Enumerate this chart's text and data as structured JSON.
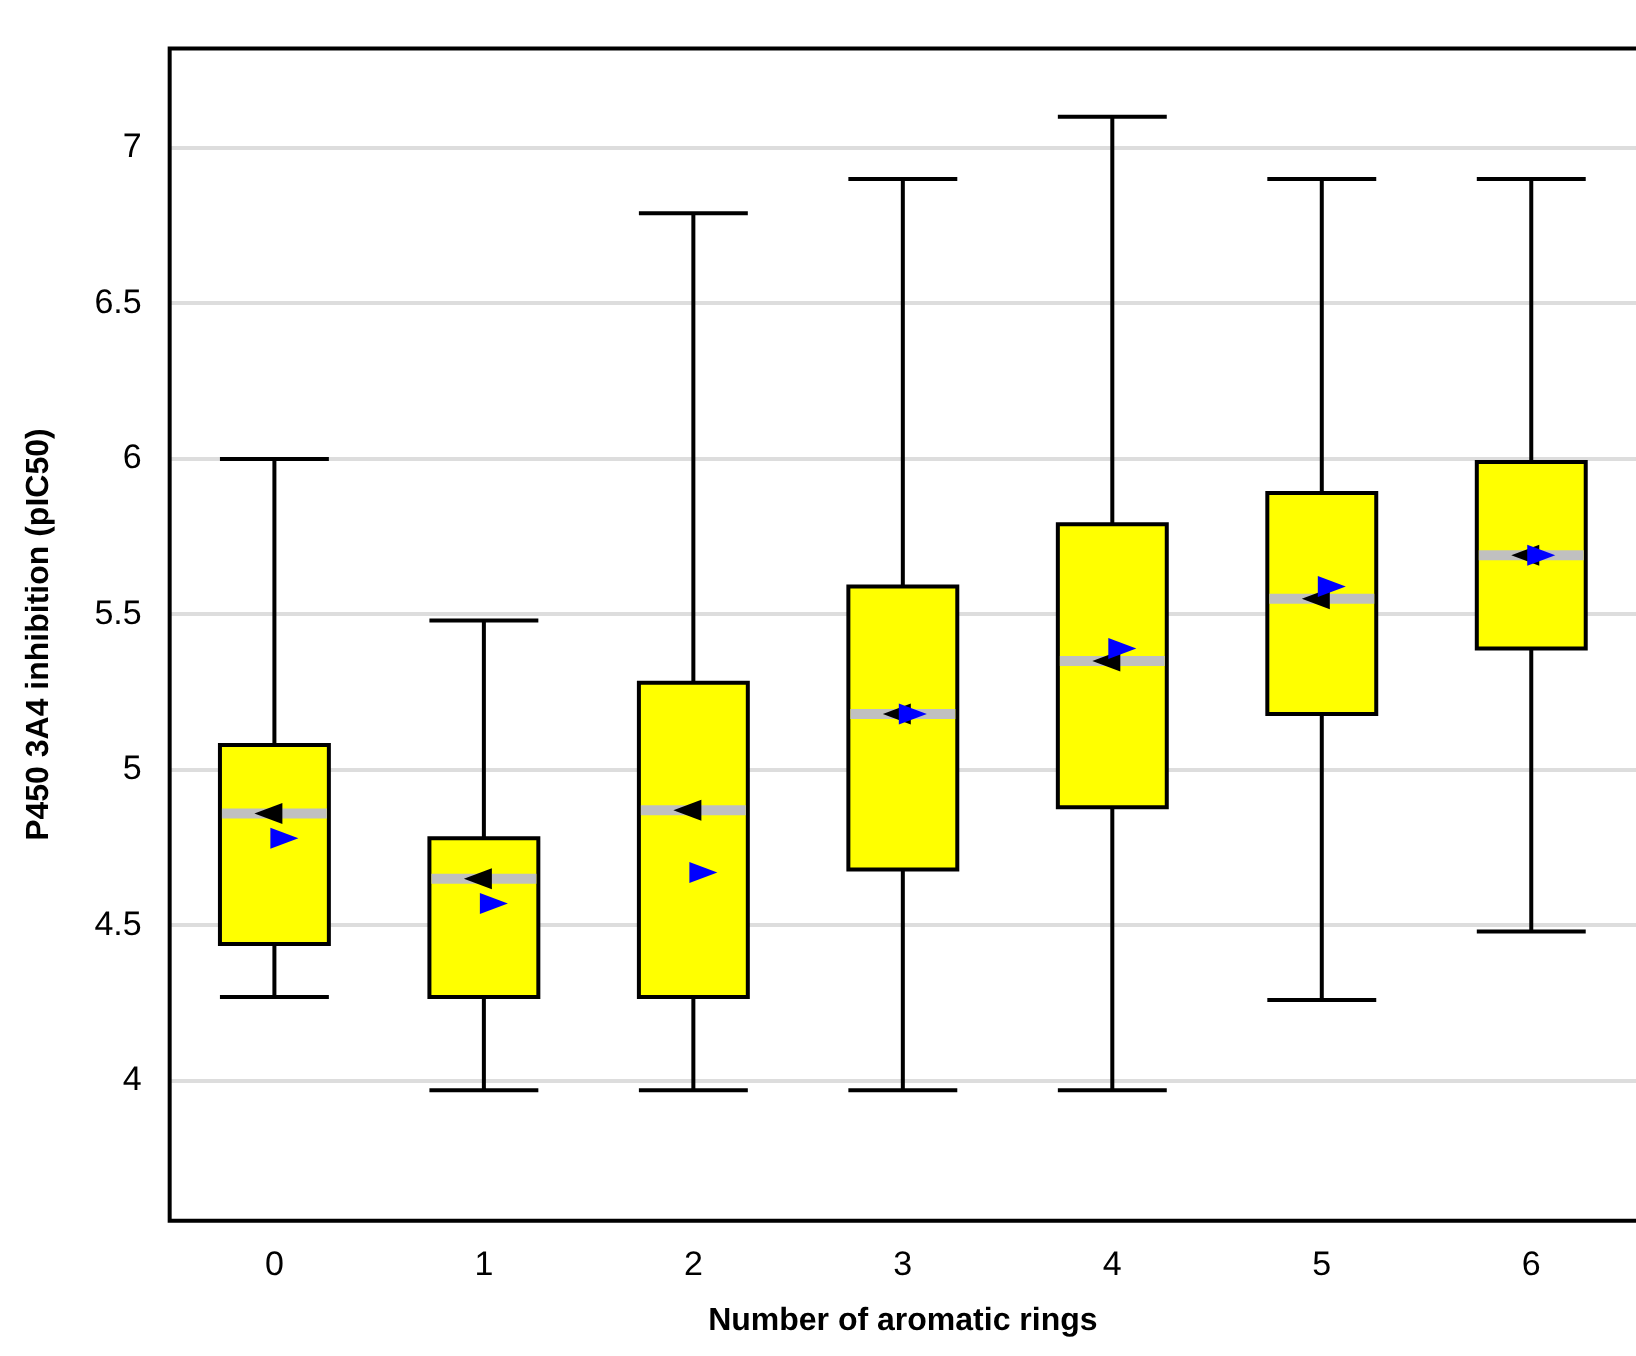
{
  "chart_data": {
    "type": "box",
    "xlabel": "Number of aromatic rings",
    "ylabel": "P450 3A4 inhibition (pIC50)",
    "categories": [
      "0",
      "1",
      "2",
      "3",
      "4",
      "5",
      "6"
    ],
    "color": "#ffff00",
    "boxes": [
      {
        "low": 4.27,
        "q1": 4.44,
        "median": 4.86,
        "q3": 5.08,
        "high": 6.0,
        "mean": 4.78
      },
      {
        "low": 3.97,
        "q1": 4.27,
        "median": 4.65,
        "q3": 4.78,
        "high": 5.48,
        "mean": 4.57
      },
      {
        "low": 3.97,
        "q1": 4.27,
        "median": 4.87,
        "q3": 5.28,
        "high": 6.79,
        "mean": 4.67
      },
      {
        "low": 3.97,
        "q1": 4.68,
        "median": 5.18,
        "q3": 5.59,
        "high": 6.9,
        "mean": 5.18
      },
      {
        "low": 3.97,
        "q1": 4.88,
        "median": 5.35,
        "q3": 5.79,
        "high": 7.1,
        "mean": 5.39
      },
      {
        "low": 4.26,
        "q1": 5.18,
        "median": 5.55,
        "q3": 5.89,
        "high": 6.9,
        "mean": 5.59
      },
      {
        "low": 4.48,
        "q1": 5.39,
        "median": 5.69,
        "q3": 5.99,
        "high": 6.9,
        "mean": 5.69
      }
    ],
    "ylim": [
      3.55,
      7.32
    ],
    "yticks": [
      4,
      4.5,
      5,
      5.5,
      6,
      6.5,
      7
    ],
    "grid": "y"
  }
}
